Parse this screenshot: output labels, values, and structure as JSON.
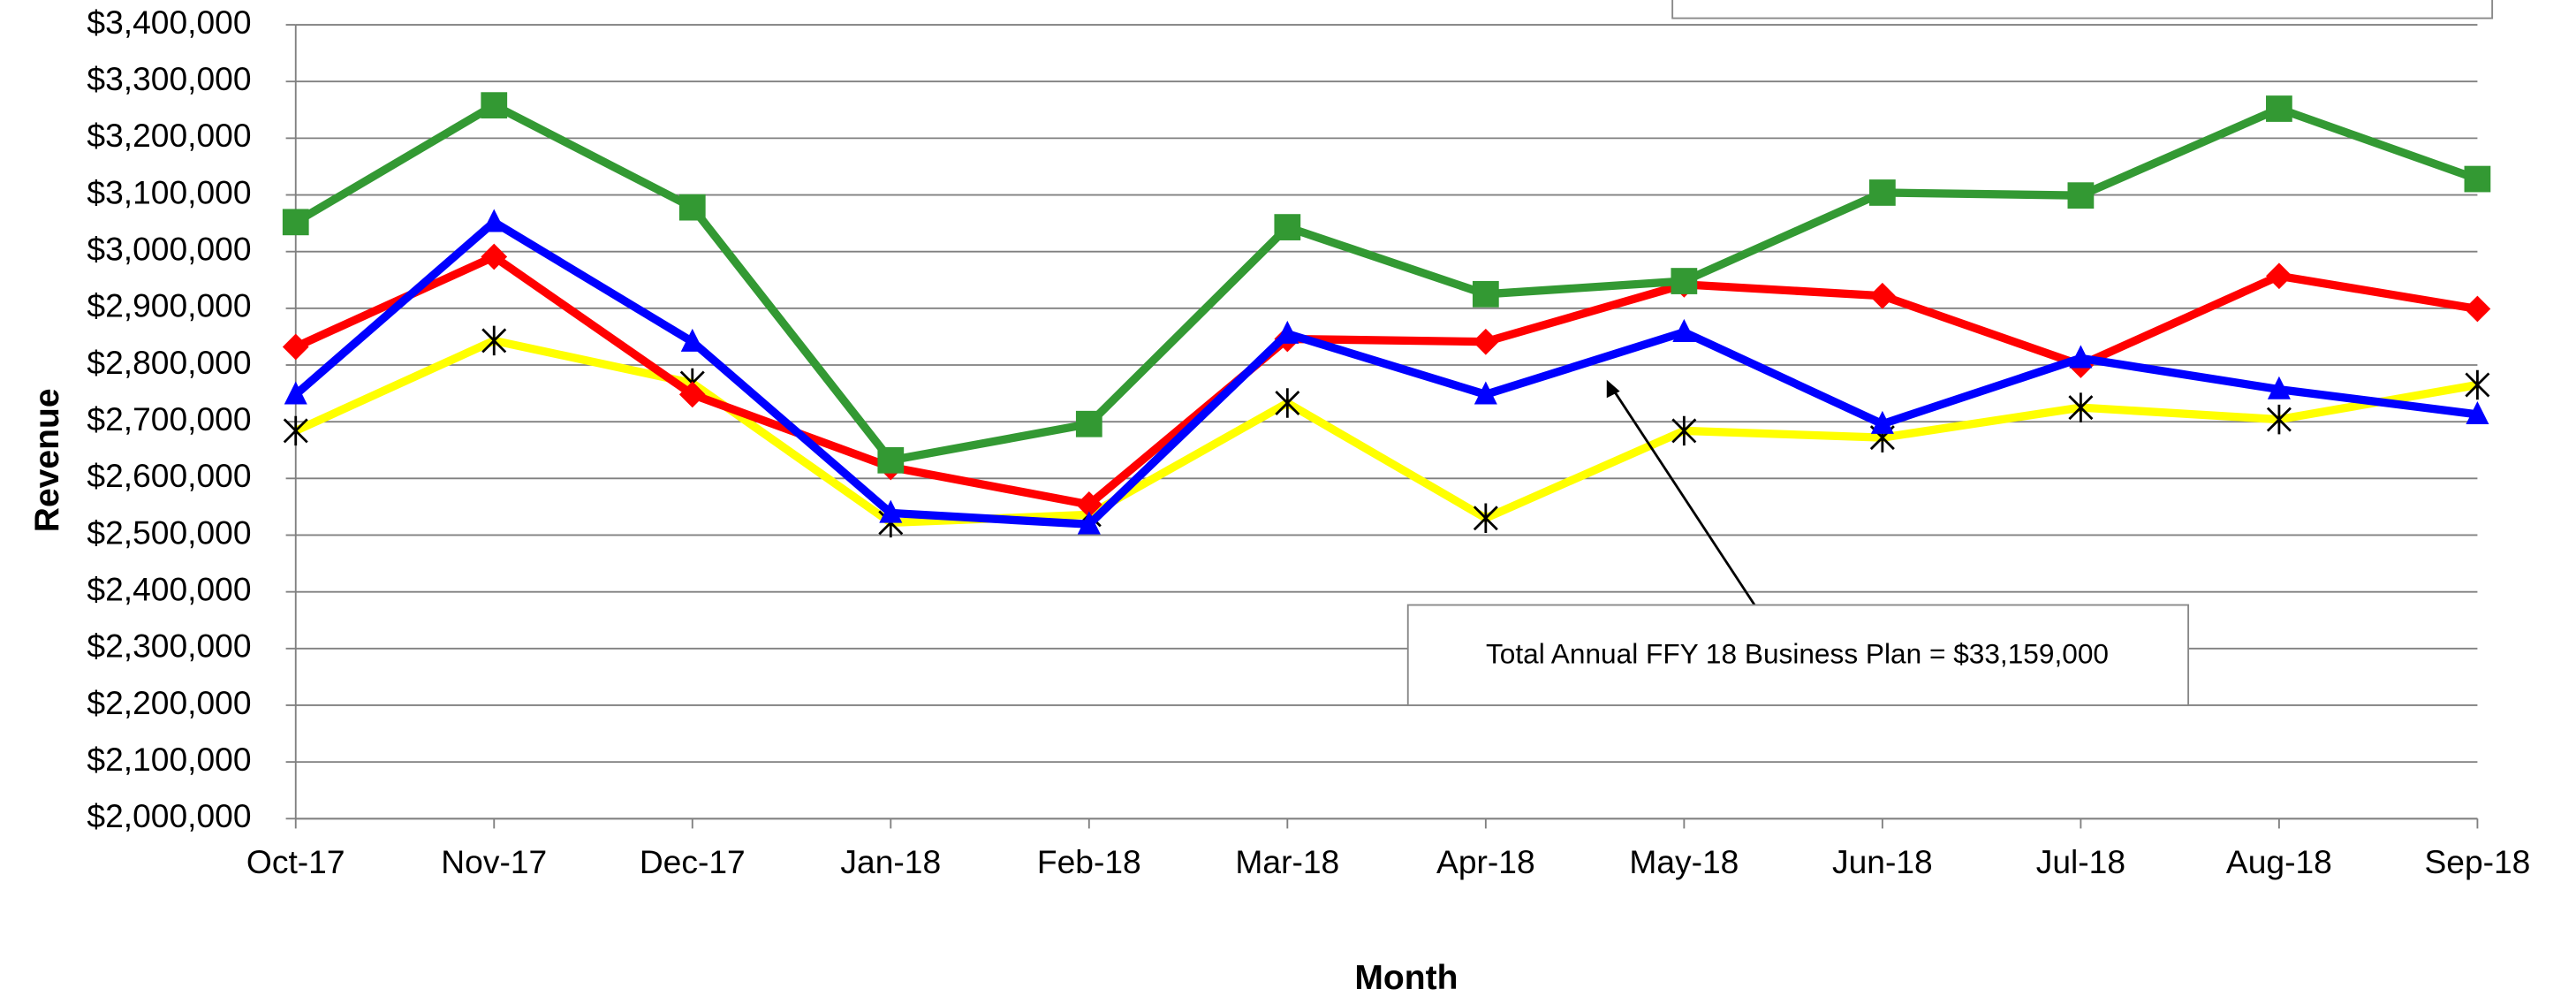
{
  "chart_data": {
    "type": "line",
    "y_label": "Revenue",
    "x_label": "Month",
    "annotation": "Total Annual FFY 18 Business Plan = $33,159,000",
    "categories": [
      "Oct-17",
      "Nov-17",
      "Dec-17",
      "Jan-18",
      "Feb-18",
      "Mar-18",
      "Apr-18",
      "May-18",
      "Jun-18",
      "Jul-18",
      "Aug-18",
      "Sep-18"
    ],
    "series": [
      {
        "color": "#ffff00",
        "marker": "asterisk",
        "marker_color": "#000000",
        "values": [
          2684000,
          2843000,
          2768000,
          2522000,
          2536000,
          2733000,
          2530000,
          2684000,
          2672000,
          2725000,
          2704000,
          2765000
        ]
      },
      {
        "color": "#ff0000",
        "marker": "diamond",
        "marker_color": "#ff0000",
        "values": [
          2832000,
          2991000,
          2748000,
          2620000,
          2554000,
          2846000,
          2841000,
          2942000,
          2922000,
          2800000,
          2957000,
          2899000
        ]
      },
      {
        "color": "#0000ff",
        "marker": "triangle",
        "marker_color": "#0000ff",
        "values": [
          2748000,
          3052000,
          2841000,
          2539000,
          2519000,
          2855000,
          2748000,
          2858000,
          2696000,
          2812000,
          2757000,
          2713000
        ]
      },
      {
        "color": "#339933",
        "marker": "square",
        "marker_color": "#339933",
        "values": [
          3052000,
          3258000,
          3078000,
          2632000,
          2696000,
          3043000,
          2925000,
          2948000,
          3104000,
          3099000,
          3252000,
          3128000
        ]
      }
    ],
    "ylim": [
      2000000,
      3400000
    ],
    "yticks": [
      {
        "value": 2000000,
        "label": "$2,000,000"
      },
      {
        "value": 2100000,
        "label": "$2,100,000"
      },
      {
        "value": 2200000,
        "label": "$2,200,000"
      },
      {
        "value": 2300000,
        "label": "$2,300,000"
      },
      {
        "value": 2400000,
        "label": "$2,400,000"
      },
      {
        "value": 2500000,
        "label": "$2,500,000"
      },
      {
        "value": 2600000,
        "label": "$2,600,000"
      },
      {
        "value": 2700000,
        "label": "$2,700,000"
      },
      {
        "value": 2800000,
        "label": "$2,800,000"
      },
      {
        "value": 2900000,
        "label": "$2,900,000"
      },
      {
        "value": 3000000,
        "label": "$3,000,000"
      },
      {
        "value": 3100000,
        "label": "$3,100,000"
      },
      {
        "value": 3200000,
        "label": "$3,200,000"
      },
      {
        "value": 3300000,
        "label": "$3,300,000"
      },
      {
        "value": 3400000,
        "label": "$3,400,000"
      }
    ],
    "grid": true
  }
}
